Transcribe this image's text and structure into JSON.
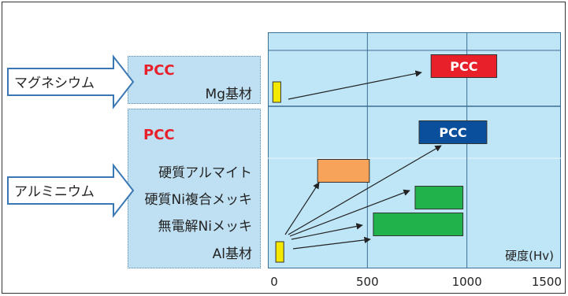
{
  "rows": {
    "mg_pcc": "PCC",
    "mg_base": "Mg基材",
    "al_pcc": "PCC",
    "al_hard_anodize": "硬質アルマイト",
    "al_hard_ni_composite": "硬質Ni複合メッキ",
    "al_electroless_ni": "無電解Niメッキ",
    "al_base": "Al基材"
  },
  "groups": {
    "magnesium": "マグネシウム",
    "aluminium": "アルミニウム"
  },
  "colors": {
    "panel": "#bfe0f2",
    "plot": "#bfe6f7",
    "pcc_red": "#e8202a",
    "pcc_blue": "#0a4f9c",
    "anodize": "#f7a45a",
    "nickel": "#22b24c",
    "base": "#f5e800"
  },
  "chart_data": {
    "type": "bar",
    "xlabel": "硬度(Hv)",
    "xlim": [
      0,
      1500
    ],
    "xticks": [
      0,
      500,
      1000,
      1500
    ],
    "bars": [
      {
        "row": "mg_pcc",
        "label": "PCC",
        "start": 820,
        "end": 1150,
        "color": "#e8202a"
      },
      {
        "row": "mg_base",
        "label": "",
        "start": 25,
        "end": 65,
        "color": "#f5e800"
      },
      {
        "row": "al_pcc",
        "label": "PCC",
        "start": 760,
        "end": 1100,
        "color": "#0a4f9c"
      },
      {
        "row": "al_hard_anodize",
        "label": "",
        "start": 250,
        "end": 510,
        "color": "#f7a45a"
      },
      {
        "row": "al_hard_ni_composite",
        "label": "",
        "start": 740,
        "end": 980,
        "color": "#22b24c"
      },
      {
        "row": "al_electroless_ni",
        "label": "",
        "start": 530,
        "end": 980,
        "color": "#22b24c"
      },
      {
        "row": "al_base",
        "label": "",
        "start": 40,
        "end": 80,
        "color": "#f5e800"
      }
    ]
  }
}
